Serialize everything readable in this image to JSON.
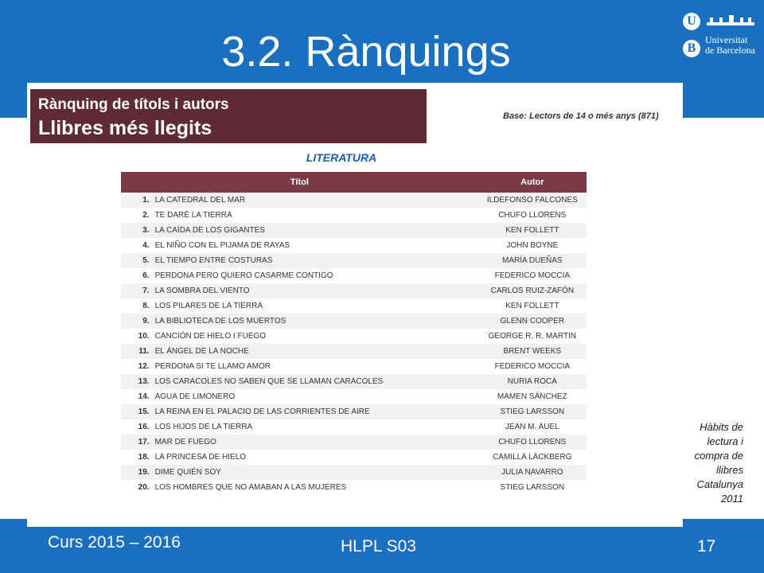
{
  "slide": {
    "title": "3.2. Rànquings",
    "logo": {
      "badge_top": "U",
      "badge_bottom": "B",
      "line1": "Universitat",
      "line2": "de Barcelona"
    }
  },
  "document": {
    "header_line1": "Rànquing de títols i autors",
    "header_line2": "Llibres més llegits",
    "base_note": "Base: Lectors de 14 o més anys (871)",
    "section_title": "LITERATURA",
    "columns": {
      "title": "Títol",
      "author": "Autor"
    },
    "rows": [
      {
        "rank": "1.",
        "title": "LA CATEDRAL DEL MAR",
        "author": "ILDEFONSO FALCONES"
      },
      {
        "rank": "2.",
        "title": "TE DARÉ LA TIERRA",
        "author": "CHUFO LLORENS"
      },
      {
        "rank": "3.",
        "title": "LA CAÍDA DE LOS GIGANTES",
        "author": "KEN FOLLETT"
      },
      {
        "rank": "4.",
        "title": "EL NIÑO CON EL PIJAMA DE RAYAS",
        "author": "JOHN BOYNE"
      },
      {
        "rank": "5.",
        "title": "EL TIEMPO ENTRE COSTURAS",
        "author": "MARÍA DUEÑAS"
      },
      {
        "rank": "6.",
        "title": "PERDONA PERO QUIERO CASARME CONTIGO",
        "author": "FEDERICO MOCCIA"
      },
      {
        "rank": "7.",
        "title": "LA SOMBRA DEL VIENTO",
        "author": "CARLOS RUIZ-ZAFÓN"
      },
      {
        "rank": "8.",
        "title": "LOS PILARES DE LA TIERRA",
        "author": "KEN FOLLETT"
      },
      {
        "rank": "9.",
        "title": "LA BIBLIOTECA DE LOS MUERTOS",
        "author": "GLENN COOPER"
      },
      {
        "rank": "10.",
        "title": "CANCIÓN DE HIELO I FUEGO",
        "author": "GEORGE R. R. MARTIN"
      },
      {
        "rank": "11.",
        "title": "EL ÁNGEL DE LA NOCHE",
        "author": "BRENT WEEKS"
      },
      {
        "rank": "12.",
        "title": "PERDONA SI TE LLAMO AMOR",
        "author": "FEDERICO MOCCIA"
      },
      {
        "rank": "13.",
        "title": "LOS CARACOLES NO SABEN QUE SE LLAMAN CARACOLES",
        "author": "NURIA ROCA"
      },
      {
        "rank": "14.",
        "title": "AGUA DE LIMONERO",
        "author": "MAMEN SÁNCHEZ"
      },
      {
        "rank": "15.",
        "title": "LA REINA EN EL PALACIO DE LAS CORRIENTES DE AIRE",
        "author": "STIEG LARSSON"
      },
      {
        "rank": "16.",
        "title": "LOS HIJOS DE LA TIERRA",
        "author": "JEAN M. AUEL"
      },
      {
        "rank": "17.",
        "title": "MAR DE FUEGO",
        "author": "CHUFO LLORENS"
      },
      {
        "rank": "18.",
        "title": "LA PRINCESA DE HIELO",
        "author": "CAMILLA LÄCKBERG"
      },
      {
        "rank": "19.",
        "title": "DIME QUIÉN SOY",
        "author": "JULIA NAVARRO"
      },
      {
        "rank": "20.",
        "title": "LOS HOMBRES QUE NO AMABAN A LAS MUJERES",
        "author": "STIEG LARSSON"
      }
    ]
  },
  "side_note": {
    "lines": [
      "Hàbits de",
      "lectura i",
      "compra de",
      "llibres",
      "Catalunya",
      "2011"
    ]
  },
  "footer": {
    "left": "Curs 2015 – 2016",
    "center": "HLPL S03",
    "page_number": "17"
  },
  "colors": {
    "band": "#1a6fc0",
    "header_bg": "#5d2a36",
    "table_header_bg": "#7a3946",
    "section_title": "#1f5bb0"
  }
}
